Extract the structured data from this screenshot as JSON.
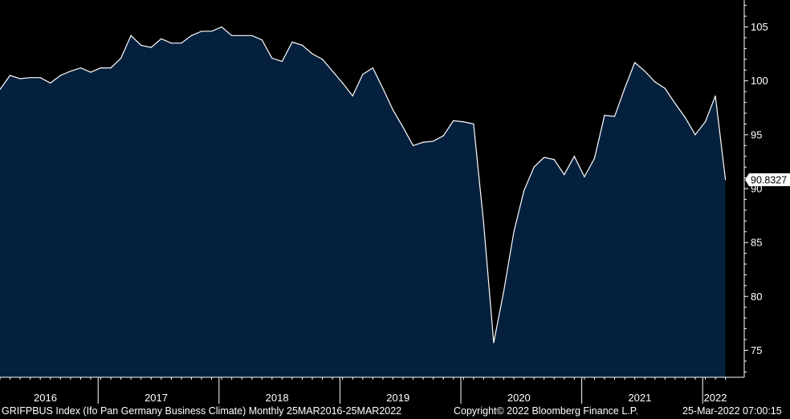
{
  "colors": {
    "background": "#000000",
    "area_fill": "#05203d",
    "line": "#ffffff",
    "tag_bg": "#ffffff",
    "tag_text": "#000000"
  },
  "footer": {
    "series_label": "GRIFPBUS Index (Ifo Pan Germany Business Climate)  Monthly 25MAR2016-25MAR2022",
    "copyright": "Copyright© 2022 Bloomberg Finance L.P.",
    "timestamp": "25-Mar-2022 07:00:15"
  },
  "chart_data": {
    "type": "area",
    "title": "",
    "xlabel": "",
    "ylabel": "",
    "ylim": [
      72.5,
      107.5
    ],
    "yticks": [
      75,
      80,
      85,
      90,
      95,
      100,
      105
    ],
    "x_year_labels": [
      "2016",
      "2017",
      "2018",
      "2019",
      "2020",
      "2021",
      "2022"
    ],
    "last_value_label": "90.8327",
    "grid": false,
    "y_axis_side": "right",
    "x": [
      "2016-03",
      "2016-04",
      "2016-05",
      "2016-06",
      "2016-07",
      "2016-08",
      "2016-09",
      "2016-10",
      "2016-11",
      "2016-12",
      "2017-01",
      "2017-02",
      "2017-03",
      "2017-04",
      "2017-05",
      "2017-06",
      "2017-07",
      "2017-08",
      "2017-09",
      "2017-10",
      "2017-11",
      "2017-12",
      "2018-01",
      "2018-02",
      "2018-03",
      "2018-04",
      "2018-05",
      "2018-06",
      "2018-07",
      "2018-08",
      "2018-09",
      "2018-10",
      "2018-11",
      "2018-12",
      "2019-01",
      "2019-02",
      "2019-03",
      "2019-04",
      "2019-05",
      "2019-06",
      "2019-07",
      "2019-08",
      "2019-09",
      "2019-10",
      "2019-11",
      "2019-12",
      "2020-01",
      "2020-02",
      "2020-03",
      "2020-04",
      "2020-05",
      "2020-06",
      "2020-07",
      "2020-08",
      "2020-09",
      "2020-10",
      "2020-11",
      "2020-12",
      "2021-01",
      "2021-02",
      "2021-03",
      "2021-04",
      "2021-05",
      "2021-06",
      "2021-07",
      "2021-08",
      "2021-09",
      "2021-10",
      "2021-11",
      "2021-12",
      "2022-01",
      "2022-02",
      "2022-03"
    ],
    "series": [
      {
        "values": [
          99.2,
          100.5,
          100.2,
          100.3,
          100.3,
          99.8,
          100.5,
          100.9,
          101.2,
          100.8,
          101.2,
          101.2,
          102.1,
          104.2,
          103.3,
          103.1,
          103.9,
          103.5,
          103.5,
          104.2,
          104.6,
          104.6,
          105.0,
          104.2,
          104.2,
          104.2,
          103.8,
          102.1,
          101.8,
          103.6,
          103.3,
          102.5,
          102.0,
          100.9,
          99.8,
          98.6,
          100.6,
          101.2,
          99.3,
          97.3,
          95.7,
          94.0,
          94.3,
          94.4,
          94.9,
          96.3,
          96.2,
          96.0,
          86.8,
          75.7,
          80.5,
          86.0,
          89.8,
          92.0,
          92.9,
          92.7,
          91.3,
          93.0,
          91.1,
          92.8,
          96.8,
          96.7,
          99.3,
          101.7,
          100.9,
          99.9,
          99.3,
          97.9,
          96.6,
          95.0,
          96.2,
          98.6,
          90.8327
        ]
      }
    ]
  }
}
